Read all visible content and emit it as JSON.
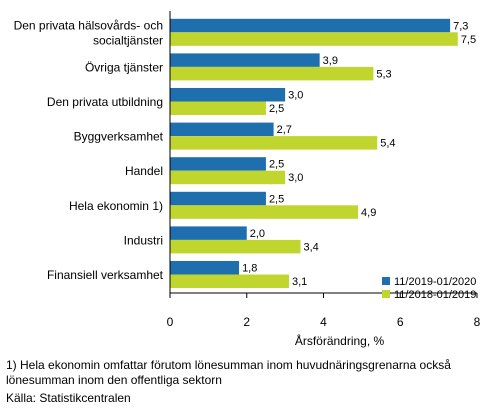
{
  "chart_data": {
    "type": "bar",
    "orientation": "horizontal",
    "categories": [
      [
        "Den privata hälsovårds- och",
        "socialtjänster"
      ],
      [
        "Övriga tjänster"
      ],
      [
        "Den privata utbildning"
      ],
      [
        "Byggverksamhet"
      ],
      [
        "Handel"
      ],
      [
        "Hela ekonomin 1)"
      ],
      [
        "Industri"
      ],
      [
        "Finansiell verksamhet"
      ]
    ],
    "series": [
      {
        "name": "11/2019-01/2020",
        "color": "#1f6fae",
        "values": [
          7.3,
          3.9,
          3.0,
          2.7,
          2.5,
          2.5,
          2.0,
          1.8
        ]
      },
      {
        "name": "11/2018-01/2019",
        "color": "#c0d62f",
        "values": [
          7.5,
          5.3,
          2.5,
          5.4,
          3.0,
          4.9,
          3.4,
          3.1
        ]
      }
    ],
    "xlabel": "Årsförändring, %",
    "xlim": [
      0,
      8
    ],
    "xticks": [
      0,
      2,
      4,
      6,
      8
    ],
    "decimal_separator": ",",
    "legend_position": "bottom-right",
    "grid": false
  },
  "footnotes": {
    "note": "1) Hela ekonomin omfattar förutom lönesumman inom huvudnäringsgrenarna också lönesumman inom den offentliga sektorn",
    "source": "Källa: Statistikcentralen"
  }
}
